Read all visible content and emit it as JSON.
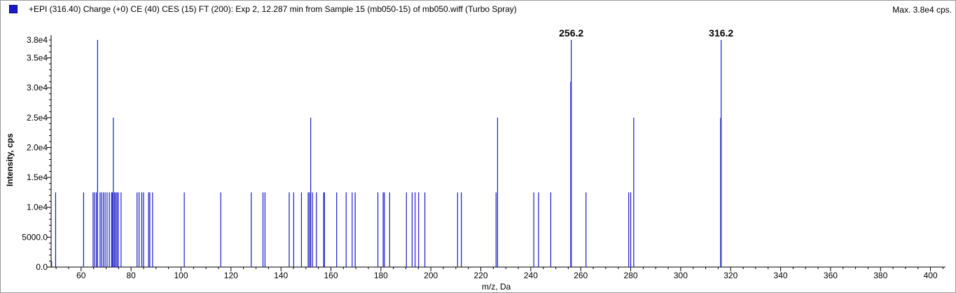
{
  "header": {
    "title": "+EPI (316.40) Charge (+0) CE (40) CES (15) FT (200): Exp 2, 12.287 min from Sample 15 (mb050-15) of mb050.wiff (Turbo Spray)",
    "max_label": "Max. 3.8e4 cps.",
    "series_color": "#1a1acc"
  },
  "chart_data": {
    "type": "bar",
    "xlabel": "m/z, Da",
    "ylabel": "Intensity, cps",
    "xlim": [
      48,
      406
    ],
    "ylim": [
      0,
      38000
    ],
    "grid": false,
    "y_ticks": [
      {
        "value": 0,
        "label": "0.0"
      },
      {
        "value": 5000,
        "label": "5000.0"
      },
      {
        "value": 10000,
        "label": "1.0e4"
      },
      {
        "value": 15000,
        "label": "1.5e4"
      },
      {
        "value": 20000,
        "label": "2.0e4"
      },
      {
        "value": 25000,
        "label": "2.5e4"
      },
      {
        "value": 30000,
        "label": "3.0e4"
      },
      {
        "value": 35000,
        "label": "3.5e4"
      },
      {
        "value": 38000,
        "label": "3.8e4"
      }
    ],
    "x_ticks": [
      {
        "value": 60,
        "label": "60"
      },
      {
        "value": 80,
        "label": "80"
      },
      {
        "value": 100,
        "label": "100"
      },
      {
        "value": 120,
        "label": "120"
      },
      {
        "value": 140,
        "label": "140"
      },
      {
        "value": 160,
        "label": "160"
      },
      {
        "value": 180,
        "label": "180"
      },
      {
        "value": 200,
        "label": "200"
      },
      {
        "value": 220,
        "label": "220"
      },
      {
        "value": 240,
        "label": "240"
      },
      {
        "value": 260,
        "label": "260"
      },
      {
        "value": 280,
        "label": "280"
      },
      {
        "value": 300,
        "label": "300"
      },
      {
        "value": 320,
        "label": "320"
      },
      {
        "value": 340,
        "label": "340"
      },
      {
        "value": 360,
        "label": "360"
      },
      {
        "value": 380,
        "label": "380"
      },
      {
        "value": 400,
        "label": "400"
      }
    ],
    "annotations": [
      {
        "label": "256.2",
        "x": 256.2,
        "y": 38000
      },
      {
        "label": "316.2",
        "x": 316.2,
        "y": 38000
      }
    ],
    "series": [
      {
        "peaks": [
          [
            48.2,
            1000
          ],
          [
            49.8,
            12500
          ],
          [
            61.0,
            12500
          ],
          [
            64.8,
            12500
          ],
          [
            65.4,
            12500
          ],
          [
            66.1,
            12500
          ],
          [
            66.6,
            38000
          ],
          [
            67.6,
            12500
          ],
          [
            68.2,
            12500
          ],
          [
            68.9,
            12500
          ],
          [
            69.6,
            12500
          ],
          [
            70.4,
            12500
          ],
          [
            71.3,
            12500
          ],
          [
            72.2,
            12500
          ],
          [
            72.6,
            12500
          ],
          [
            72.9,
            25000
          ],
          [
            73.4,
            12500
          ],
          [
            73.9,
            12500
          ],
          [
            74.4,
            12500
          ],
          [
            74.9,
            12500
          ],
          [
            76.0,
            12500
          ],
          [
            82.4,
            12500
          ],
          [
            83.2,
            12500
          ],
          [
            84.3,
            12500
          ],
          [
            85.0,
            12500
          ],
          [
            87.0,
            12500
          ],
          [
            87.5,
            12500
          ],
          [
            88.6,
            12500
          ],
          [
            101.3,
            12500
          ],
          [
            115.9,
            12500
          ],
          [
            128.1,
            12500
          ],
          [
            132.8,
            12500
          ],
          [
            133.6,
            12500
          ],
          [
            143.3,
            12500
          ],
          [
            145.1,
            12500
          ],
          [
            148.2,
            12500
          ],
          [
            150.9,
            12500
          ],
          [
            151.4,
            12500
          ],
          [
            151.9,
            25000
          ],
          [
            152.6,
            12500
          ],
          [
            154.2,
            12500
          ],
          [
            157.1,
            12500
          ],
          [
            157.4,
            12500
          ],
          [
            162.3,
            12500
          ],
          [
            166.1,
            12500
          ],
          [
            168.5,
            12500
          ],
          [
            169.7,
            12500
          ],
          [
            178.8,
            12500
          ],
          [
            180.9,
            12500
          ],
          [
            181.4,
            12500
          ],
          [
            183.5,
            12500
          ],
          [
            190.2,
            12500
          ],
          [
            192.5,
            12500
          ],
          [
            193.7,
            12500
          ],
          [
            195.1,
            12500
          ],
          [
            197.6,
            12500
          ],
          [
            210.7,
            12500
          ],
          [
            212.2,
            12500
          ],
          [
            226.1,
            12500
          ],
          [
            226.7,
            25000
          ],
          [
            241.2,
            12500
          ],
          [
            243.1,
            12500
          ],
          [
            248.0,
            12500
          ],
          [
            256.0,
            31000
          ],
          [
            256.2,
            38000
          ],
          [
            262.1,
            12500
          ],
          [
            279.2,
            12500
          ],
          [
            280.0,
            12500
          ],
          [
            281.2,
            25000
          ],
          [
            316.0,
            25000
          ],
          [
            316.2,
            38000
          ]
        ]
      }
    ]
  }
}
